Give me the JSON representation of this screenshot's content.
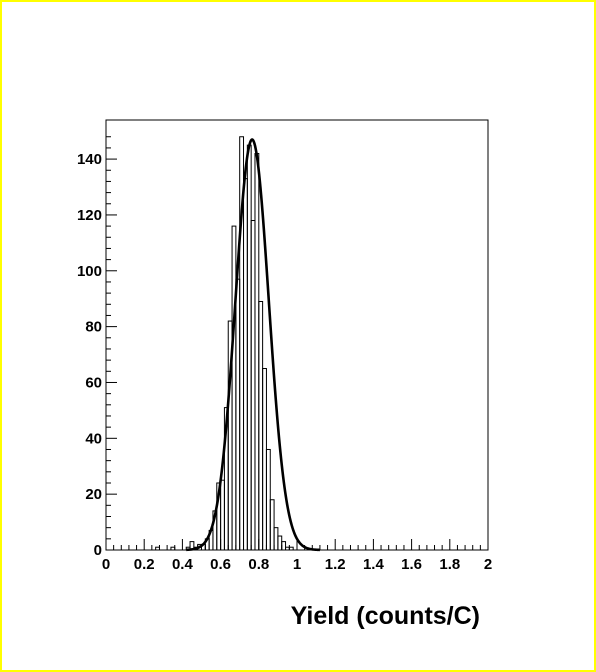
{
  "chart_data": {
    "type": "histogram",
    "xlabel": "Yield (counts/C)",
    "ylabel": "",
    "xlim": [
      0,
      2
    ],
    "ylim": [
      0,
      154
    ],
    "x_ticks": [
      "0",
      "0.2",
      "0.4",
      "0.6",
      "0.8",
      "1",
      "1.2",
      "1.4",
      "1.6",
      "1.8",
      "2"
    ],
    "y_ticks": [
      "0",
      "20",
      "40",
      "60",
      "80",
      "100",
      "120",
      "140"
    ],
    "grid": false,
    "legend": "none",
    "bin_width": 0.02,
    "series": [
      {
        "kind": "histogram",
        "bins": [
          {
            "x0": 0.26,
            "x1": 0.28,
            "y": 1
          },
          {
            "x0": 0.34,
            "x1": 0.36,
            "y": 1
          },
          {
            "x0": 0.42,
            "x1": 0.44,
            "y": 1
          },
          {
            "x0": 0.44,
            "x1": 0.46,
            "y": 3
          },
          {
            "x0": 0.46,
            "x1": 0.48,
            "y": 1
          },
          {
            "x0": 0.48,
            "x1": 0.5,
            "y": 2
          },
          {
            "x0": 0.5,
            "x1": 0.52,
            "y": 2
          },
          {
            "x0": 0.52,
            "x1": 0.54,
            "y": 4
          },
          {
            "x0": 0.54,
            "x1": 0.56,
            "y": 7
          },
          {
            "x0": 0.56,
            "x1": 0.58,
            "y": 14
          },
          {
            "x0": 0.58,
            "x1": 0.6,
            "y": 24
          },
          {
            "x0": 0.6,
            "x1": 0.62,
            "y": 25
          },
          {
            "x0": 0.62,
            "x1": 0.64,
            "y": 51
          },
          {
            "x0": 0.64,
            "x1": 0.66,
            "y": 82
          },
          {
            "x0": 0.66,
            "x1": 0.68,
            "y": 116
          },
          {
            "x0": 0.68,
            "x1": 0.7,
            "y": 97
          },
          {
            "x0": 0.7,
            "x1": 0.72,
            "y": 148
          },
          {
            "x0": 0.72,
            "x1": 0.74,
            "y": 133
          },
          {
            "x0": 0.74,
            "x1": 0.76,
            "y": 145
          },
          {
            "x0": 0.76,
            "x1": 0.78,
            "y": 118
          },
          {
            "x0": 0.78,
            "x1": 0.8,
            "y": 142
          },
          {
            "x0": 0.8,
            "x1": 0.82,
            "y": 89
          },
          {
            "x0": 0.82,
            "x1": 0.84,
            "y": 65
          },
          {
            "x0": 0.84,
            "x1": 0.86,
            "y": 36
          },
          {
            "x0": 0.86,
            "x1": 0.88,
            "y": 18
          },
          {
            "x0": 0.88,
            "x1": 0.9,
            "y": 8
          },
          {
            "x0": 0.9,
            "x1": 0.92,
            "y": 5
          },
          {
            "x0": 0.92,
            "x1": 0.94,
            "y": 3
          },
          {
            "x0": 0.94,
            "x1": 0.96,
            "y": 1
          },
          {
            "x0": 0.96,
            "x1": 0.98,
            "y": 1
          }
        ]
      },
      {
        "kind": "fit",
        "function": "gaussian",
        "amplitude": 147,
        "mean": 0.765,
        "sigma": 0.0875,
        "x_range": [
          0.42,
          1.12
        ]
      }
    ]
  },
  "colors": {
    "canvas_border": "#ffff00",
    "background": "#ffffff",
    "ink": "#000000"
  }
}
